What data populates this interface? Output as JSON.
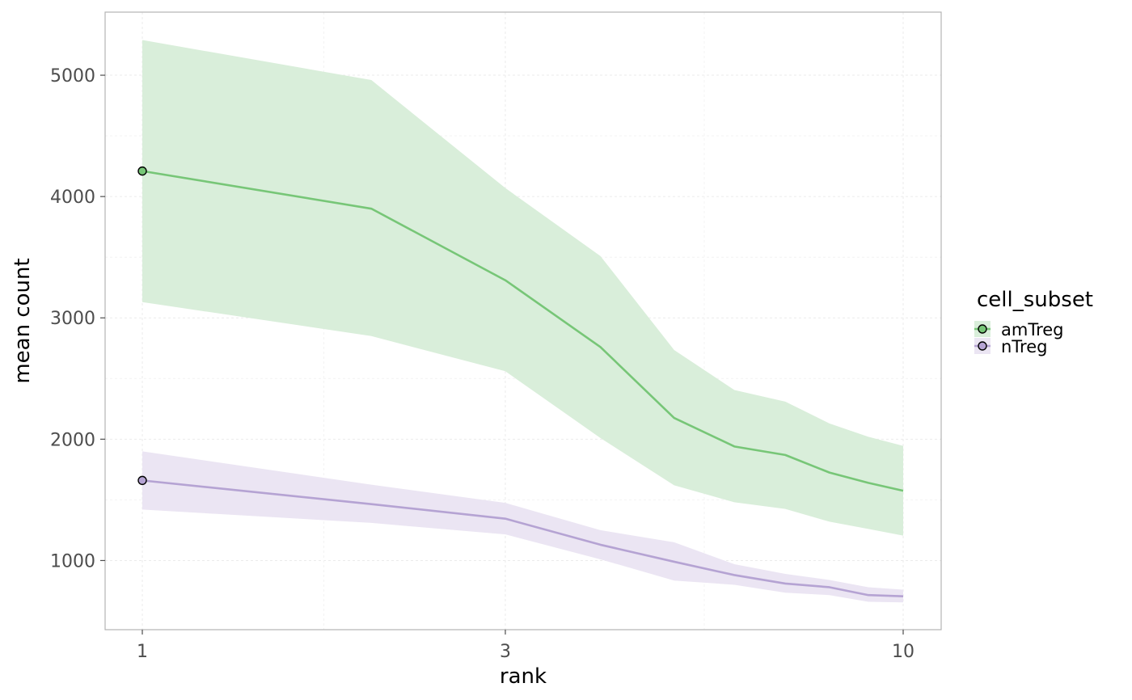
{
  "chart_data": {
    "type": "line",
    "title": "",
    "xlabel": "rank",
    "ylabel": "mean count",
    "x_scale": "log10",
    "xlim": [
      1,
      10
    ],
    "ylim": [
      430,
      5520
    ],
    "x_ticks": [
      1,
      3,
      10
    ],
    "x_tick_labels": [
      "1",
      "3",
      "10"
    ],
    "y_ticks": [
      1000,
      2000,
      3000,
      4000,
      5000
    ],
    "y_tick_labels": [
      "1000",
      "2000",
      "3000",
      "4000",
      "5000"
    ],
    "grid": true,
    "legend": {
      "title": "cell_subset",
      "position": "right"
    },
    "series": [
      {
        "name": "amTreg",
        "color": "#77c677",
        "fill": "#d9eeda",
        "x": [
          1,
          2,
          3,
          4,
          5,
          6,
          7,
          8,
          9,
          10
        ],
        "y": [
          4210,
          3900,
          3310,
          2760,
          2175,
          1940,
          1870,
          1725,
          1640,
          1575
        ],
        "lower": [
          3130,
          2850,
          2560,
          2010,
          1620,
          1480,
          1425,
          1320,
          1260,
          1205
        ],
        "upper": [
          5290,
          4960,
          4070,
          3510,
          2735,
          2405,
          2310,
          2130,
          2020,
          1945
        ],
        "marker_at": [
          1
        ]
      },
      {
        "name": "nTreg",
        "color": "#b5a3d3",
        "fill": "#ebe5f3",
        "x": [
          1,
          2,
          3,
          4,
          5,
          6,
          7,
          8,
          9,
          10
        ],
        "y": [
          1660,
          1465,
          1345,
          1130,
          990,
          880,
          810,
          780,
          715,
          705
        ],
        "lower": [
          1420,
          1310,
          1215,
          1010,
          835,
          800,
          735,
          715,
          660,
          655
        ],
        "upper": [
          1900,
          1625,
          1475,
          1250,
          1150,
          970,
          890,
          840,
          780,
          760
        ],
        "marker_at": [
          1
        ]
      }
    ]
  }
}
